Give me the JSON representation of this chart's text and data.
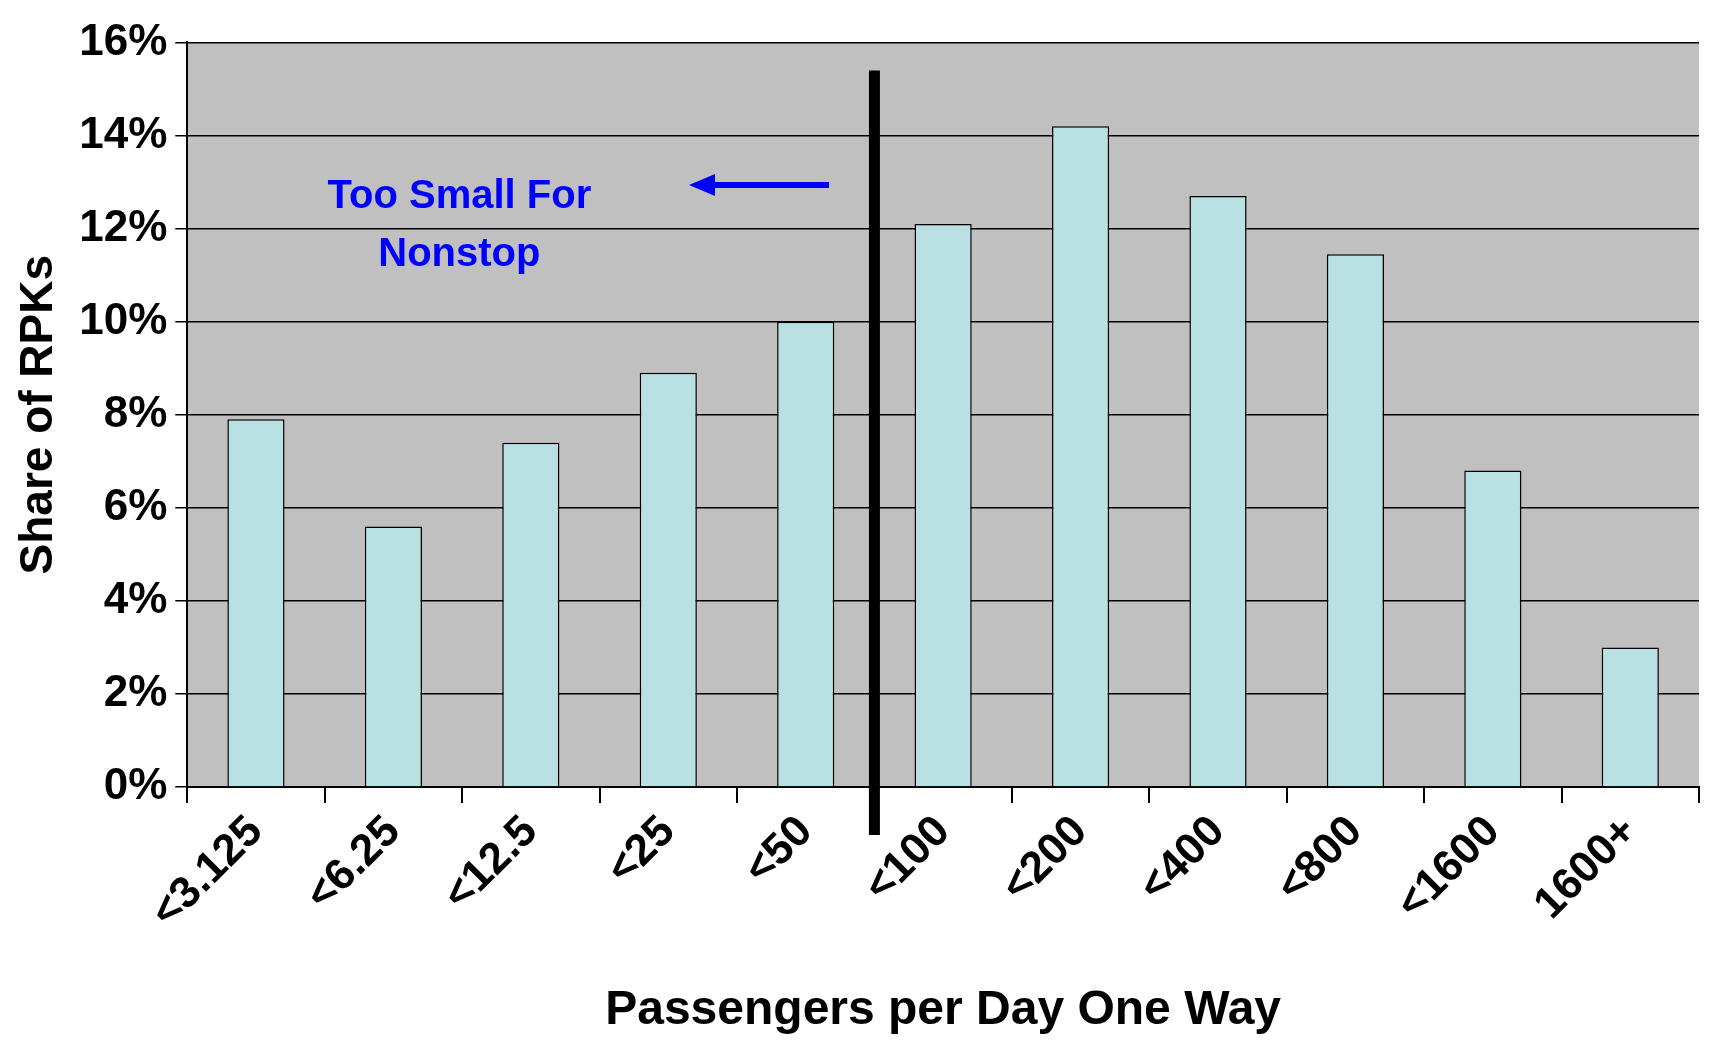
{
  "chart_data": {
    "type": "bar",
    "xlabel": "Passengers per Day One Way",
    "ylabel": "Share of RPKs",
    "categories": [
      "<3.125",
      "<6.25",
      "<12.5",
      "<25",
      "<50",
      "<100",
      "<200",
      "<400",
      "<800",
      "<1600",
      "1600+"
    ],
    "values": [
      7.9,
      5.6,
      7.4,
      8.9,
      10.0,
      12.1,
      14.2,
      12.7,
      11.45,
      6.8,
      3.0
    ],
    "color": "#b9e0e3",
    "ylim": [
      0,
      16
    ],
    "yticks": [
      {
        "value": 0,
        "label": "0%"
      },
      {
        "value": 2,
        "label": "2%"
      },
      {
        "value": 4,
        "label": "4%"
      },
      {
        "value": 6,
        "label": "6%"
      },
      {
        "value": 8,
        "label": "8%"
      },
      {
        "value": 10,
        "label": "10%"
      },
      {
        "value": 12,
        "label": "12%"
      },
      {
        "value": 14,
        "label": "14%"
      },
      {
        "value": 16,
        "label": "16%"
      }
    ],
    "grid": "y",
    "ref_lines": [
      {
        "axis": "x",
        "value": "<100",
        "color": "#000000"
      }
    ],
    "annotations": [
      "Too Small For Nonstop"
    ]
  }
}
